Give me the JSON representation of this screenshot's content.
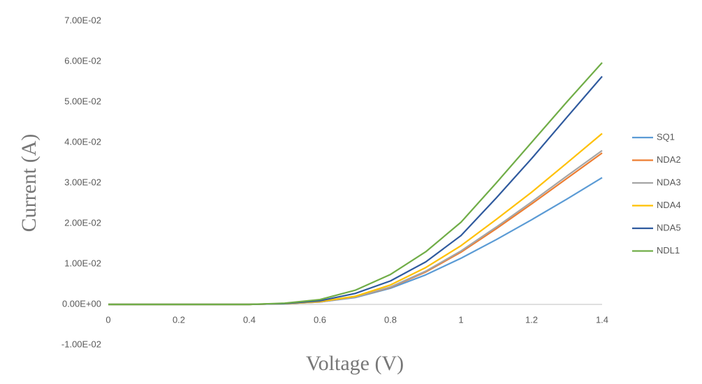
{
  "chart_data": {
    "type": "line",
    "y_label": "Current (A)",
    "x_label": "Voltage (V)",
    "x": [
      0,
      0.1,
      0.2,
      0.3,
      0.4,
      0.5,
      0.6,
      0.7,
      0.8,
      0.9,
      1.0,
      1.1,
      1.2,
      1.3,
      1.4
    ],
    "series": [
      {
        "name": "SQ1",
        "color": "#5b9bd5",
        "values": [
          0,
          0,
          0,
          0,
          0,
          0.0002,
          0.0006,
          0.0017,
          0.004,
          0.0073,
          0.0114,
          0.016,
          0.0209,
          0.026,
          0.0313
        ]
      },
      {
        "name": "NDA2",
        "color": "#ed7d31",
        "values": [
          0,
          0,
          0,
          0,
          0,
          0.0002,
          0.0006,
          0.0018,
          0.0042,
          0.008,
          0.0129,
          0.0187,
          0.0248,
          0.0311,
          0.0374
        ]
      },
      {
        "name": "NDA3",
        "color": "#a5a5a5",
        "values": [
          0,
          0,
          0,
          0,
          0,
          0.0002,
          0.0006,
          0.0018,
          0.0043,
          0.0082,
          0.0132,
          0.0191,
          0.0253,
          0.0317,
          0.038
        ]
      },
      {
        "name": "NDA4",
        "color": "#ffc000",
        "values": [
          0,
          0,
          0,
          0,
          0,
          0.0002,
          0.0007,
          0.002,
          0.0048,
          0.0091,
          0.0145,
          0.021,
          0.0277,
          0.0349,
          0.0422
        ]
      },
      {
        "name": "NDA5",
        "color": "#2f5a9e",
        "values": [
          0,
          0,
          0,
          0,
          0,
          0.0002,
          0.0009,
          0.0027,
          0.0058,
          0.0105,
          0.017,
          0.0263,
          0.036,
          0.0462,
          0.0563
        ]
      },
      {
        "name": "NDL1",
        "color": "#70ad47",
        "values": [
          0,
          0,
          0,
          0,
          0,
          0.0003,
          0.0012,
          0.0035,
          0.0074,
          0.013,
          0.0203,
          0.03,
          0.04,
          0.05,
          0.0597
        ]
      }
    ],
    "xlim": [
      0,
      1.4
    ],
    "xticks": [
      0,
      0.2,
      0.4,
      0.6,
      0.8,
      1,
      1.2,
      1.4
    ],
    "ylim": [
      -0.01,
      0.07
    ],
    "yticks": [
      {
        "value": -0.01,
        "label": "-1.00E-02"
      },
      {
        "value": 0,
        "label": "0.00E+00"
      },
      {
        "value": 0.01,
        "label": "1.00E-02"
      },
      {
        "value": 0.02,
        "label": "2.00E-02"
      },
      {
        "value": 0.03,
        "label": "3.00E-02"
      },
      {
        "value": 0.04,
        "label": "4.00E-02"
      },
      {
        "value": 0.05,
        "label": "5.00E-02"
      },
      {
        "value": 0.06,
        "label": "6.00E-02"
      },
      {
        "value": 0.07,
        "label": "7.00E-02"
      }
    ],
    "legend": "right",
    "grid": false
  }
}
